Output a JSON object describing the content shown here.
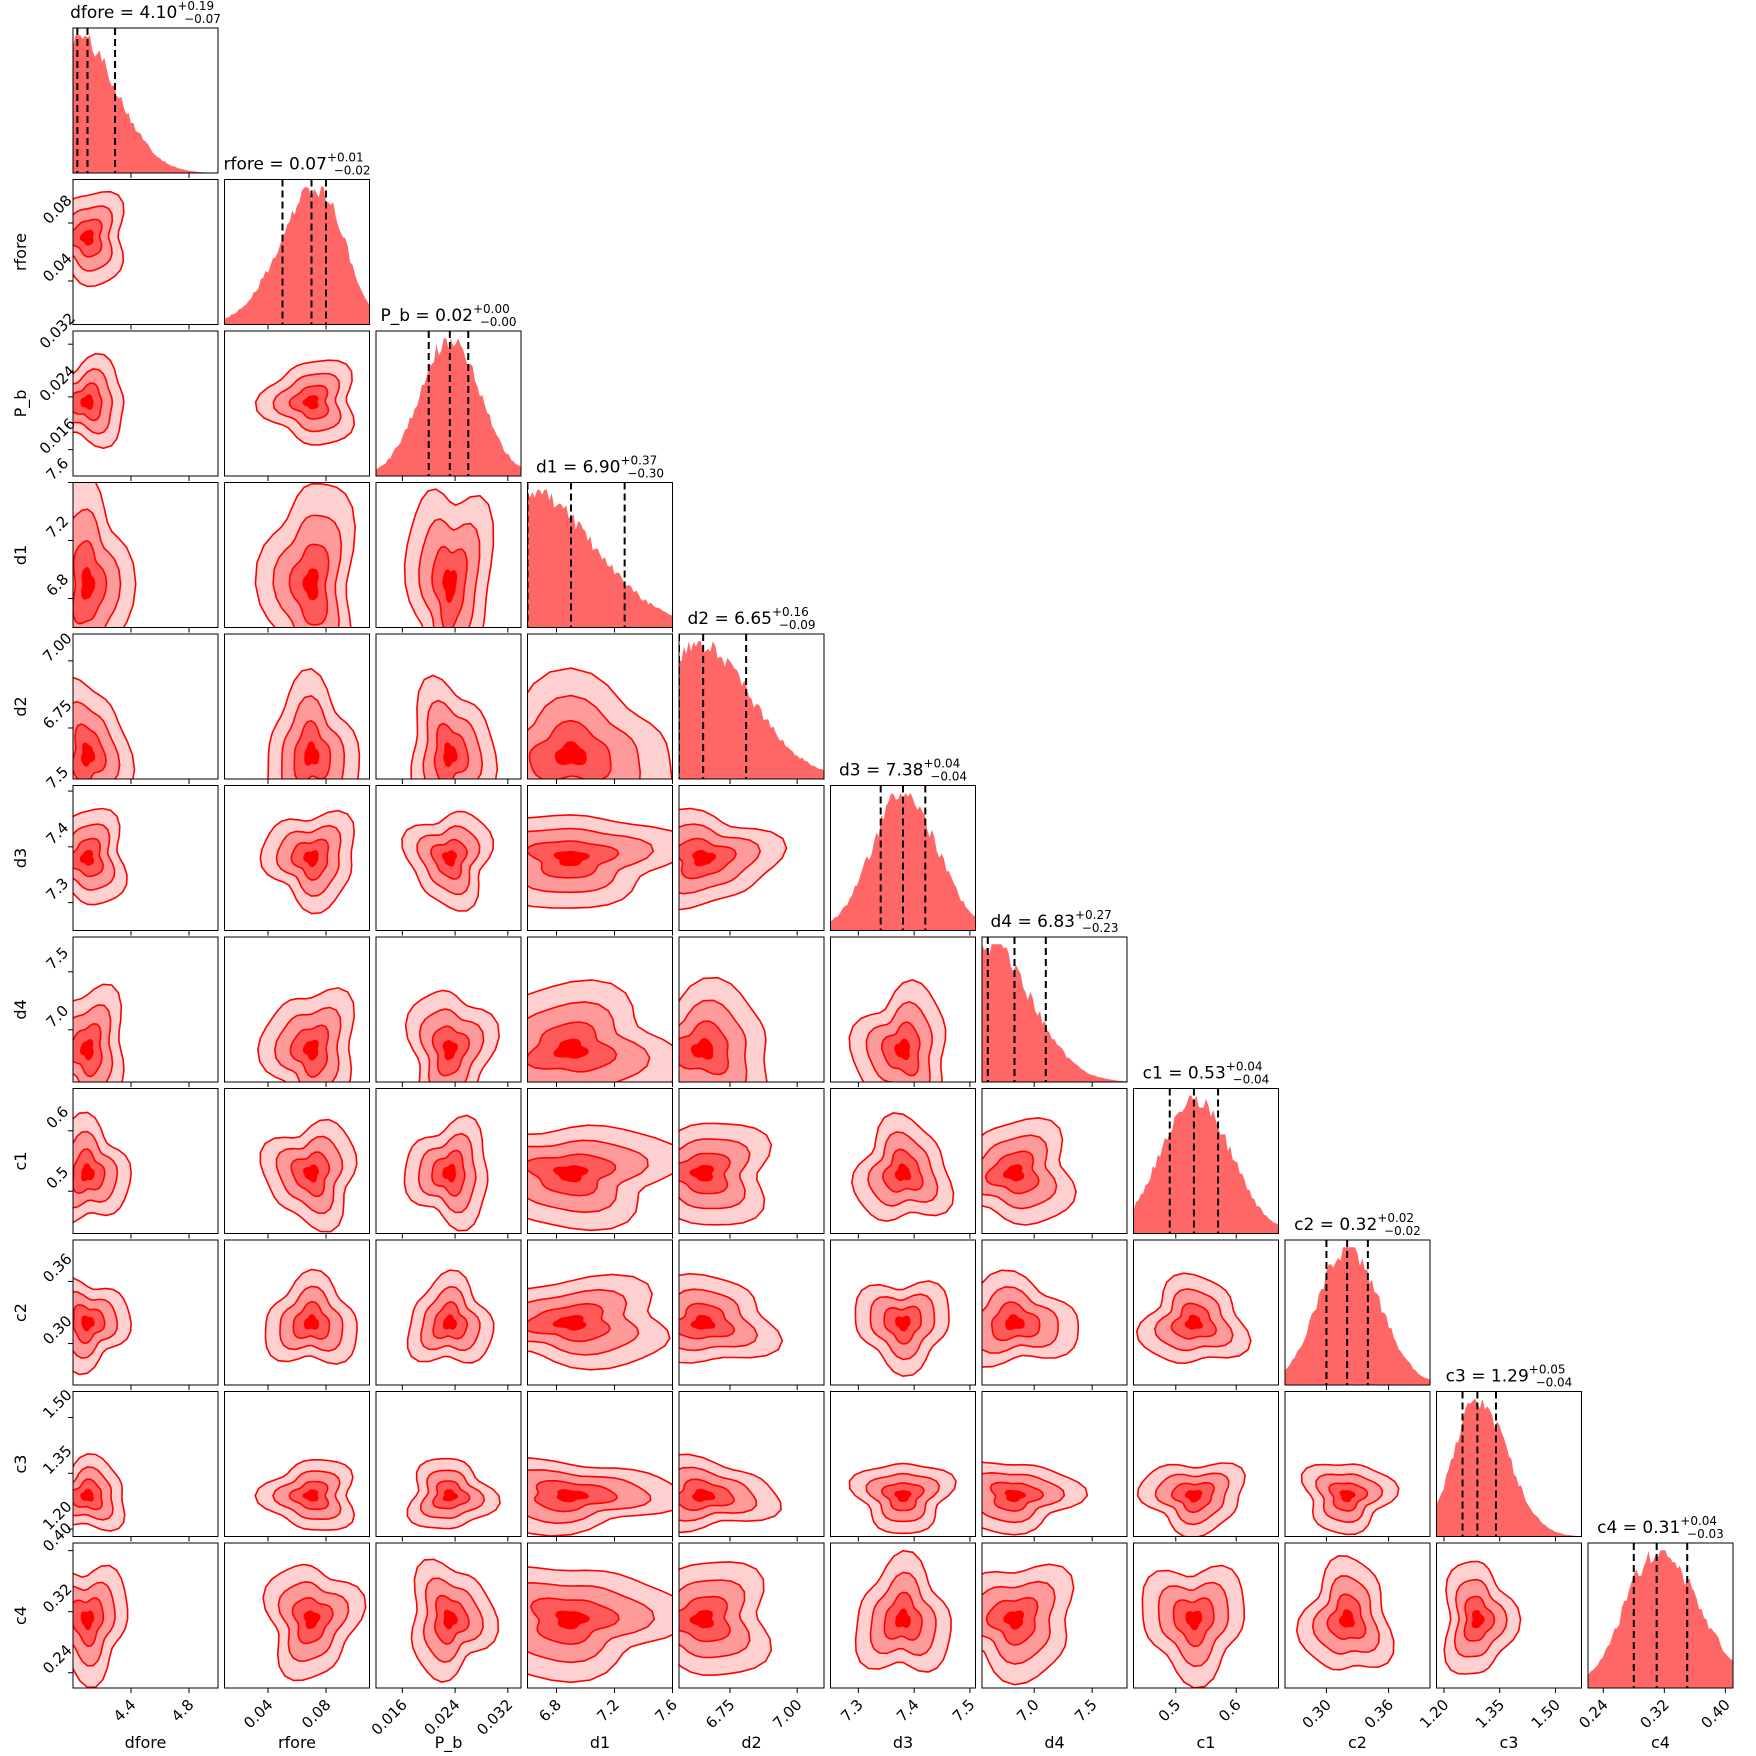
{
  "colors": {
    "primary": "#ff0000",
    "hist_fill": "#ff6666",
    "level_1": "#ffd0d0",
    "level_2": "#ff9a9a",
    "level_3": "#ff5a5a",
    "level_4": "#ff0000",
    "quantile_line": "#000000"
  },
  "chart_data": {
    "type": "corner",
    "title": "",
    "parameters": [
      {
        "name": "dfore",
        "label": "dfore",
        "median": "4.10",
        "plus": "+0.19",
        "minus": "−0.07",
        "range": [
          4.0,
          5.0
        ],
        "ticks": [
          "4.4",
          "4.8"
        ],
        "tick_values": [
          4.4,
          4.8
        ],
        "quantiles": [
          4.03,
          4.1,
          4.29
        ],
        "hist_mode": 4.03
      },
      {
        "name": "rfore",
        "label": "rfore",
        "median": "0.07",
        "plus": "+0.01",
        "minus": "−0.02",
        "range": [
          0.01,
          0.11
        ],
        "ticks": [
          "0.04",
          "0.08"
        ],
        "tick_values": [
          0.04,
          0.08
        ],
        "quantiles": [
          0.05,
          0.07,
          0.08
        ],
        "hist_mode": 0.075
      },
      {
        "name": "P_b",
        "label": "P_b",
        "median": "0.02",
        "plus": "+0.00",
        "minus": "−0.00",
        "range": [
          0.012,
          0.034
        ],
        "ticks": [
          "0.016",
          "0.024",
          "0.032"
        ],
        "tick_values": [
          0.016,
          0.024,
          0.032
        ],
        "quantiles": [
          0.02,
          0.0232,
          0.026
        ],
        "hist_mode": 0.0232
      },
      {
        "name": "d1",
        "label": "d1",
        "median": "6.90",
        "plus": "+0.37",
        "minus": "−0.30",
        "range": [
          6.6,
          7.6
        ],
        "ticks": [
          "6.8",
          "7.2",
          "7.6"
        ],
        "tick_values": [
          6.8,
          7.2,
          7.6
        ],
        "quantiles": [
          6.6,
          6.9,
          7.27
        ],
        "hist_mode": 6.6
      },
      {
        "name": "d2",
        "label": "d2",
        "median": "6.65",
        "plus": "+0.16",
        "minus": "−0.09",
        "range": [
          6.56,
          7.1
        ],
        "ticks": [
          "6.75",
          "7.00"
        ],
        "tick_values": [
          6.75,
          7.0
        ],
        "quantiles": [
          6.56,
          6.65,
          6.81
        ],
        "hist_mode": 6.62
      },
      {
        "name": "d3",
        "label": "d3",
        "median": "7.38",
        "plus": "+0.04",
        "minus": "−0.04",
        "range": [
          7.25,
          7.51
        ],
        "ticks": [
          "7.3",
          "7.4",
          "7.5"
        ],
        "tick_values": [
          7.3,
          7.4,
          7.5
        ],
        "quantiles": [
          7.34,
          7.38,
          7.42
        ],
        "hist_mode": 7.38
      },
      {
        "name": "d4",
        "label": "d4",
        "median": "6.83",
        "plus": "+0.27",
        "minus": "−0.23",
        "range": [
          6.55,
          7.8
        ],
        "ticks": [
          "7.0",
          "7.5"
        ],
        "tick_values": [
          7.0,
          7.5
        ],
        "quantiles": [
          6.6,
          6.83,
          7.1
        ],
        "hist_mode": 6.6
      },
      {
        "name": "c1",
        "label": "c1",
        "median": "0.53",
        "plus": "+0.04",
        "minus": "−0.04",
        "range": [
          0.43,
          0.67
        ],
        "ticks": [
          "0.5",
          "0.6"
        ],
        "tick_values": [
          0.5,
          0.6
        ],
        "quantiles": [
          0.49,
          0.53,
          0.57
        ],
        "hist_mode": 0.53
      },
      {
        "name": "c2",
        "label": "c2",
        "median": "0.32",
        "plus": "+0.02",
        "minus": "−0.02",
        "range": [
          0.26,
          0.4
        ],
        "ticks": [
          "0.30",
          "0.36"
        ],
        "tick_values": [
          0.3,
          0.36
        ],
        "quantiles": [
          0.3,
          0.32,
          0.34
        ],
        "hist_mode": 0.32
      },
      {
        "name": "c3",
        "label": "c3",
        "median": "1.29",
        "plus": "+0.05",
        "minus": "−0.04",
        "range": [
          1.18,
          1.57
        ],
        "ticks": [
          "1.20",
          "1.35",
          "1.50"
        ],
        "tick_values": [
          1.2,
          1.35,
          1.5
        ],
        "quantiles": [
          1.25,
          1.29,
          1.34
        ],
        "hist_mode": 1.29
      },
      {
        "name": "c4",
        "label": "c4",
        "median": "0.31",
        "plus": "+0.04",
        "minus": "−0.03",
        "range": [
          0.22,
          0.41
        ],
        "ticks": [
          "0.24",
          "0.32",
          "0.40"
        ],
        "tick_values": [
          0.24,
          0.32,
          0.4
        ],
        "quantiles": [
          0.28,
          0.31,
          0.35
        ],
        "hist_mode": 0.31
      }
    ]
  }
}
